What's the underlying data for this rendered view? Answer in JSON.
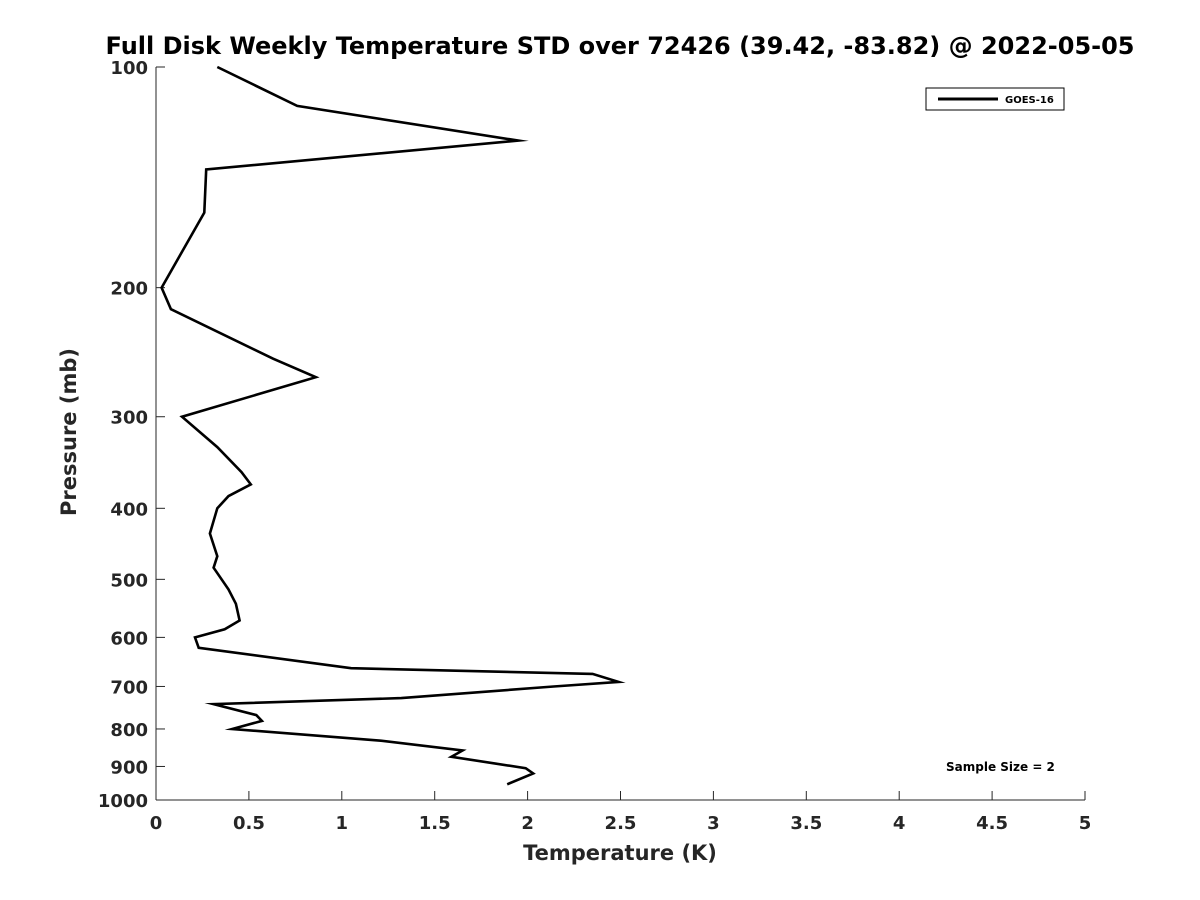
{
  "chart_data": {
    "type": "line",
    "title": "Full Disk Weekly Temperature STD over 72426 (39.42, -83.82) @ 2022-05-05",
    "xlabel": "Temperature (K)",
    "ylabel": "Pressure (mb)",
    "xlim": [
      0,
      5
    ],
    "ylim": [
      100,
      1000
    ],
    "y_scale": "log",
    "y_reversed": true,
    "grid": false,
    "legend_position": "top-right",
    "x_ticks": [
      "0",
      "0.5",
      "1",
      "1.5",
      "2",
      "2.5",
      "3",
      "3.5",
      "4",
      "4.5",
      "5"
    ],
    "y_ticks": [
      "100",
      "200",
      "300",
      "400",
      "500",
      "600",
      "700",
      "800",
      "900",
      "1000"
    ],
    "annotation": "Sample Size = 2",
    "series": [
      {
        "name": "GOES-16",
        "color": "#000000",
        "x": [
          0.33,
          0.76,
          1.95,
          0.27,
          0.26,
          0.03,
          0.08,
          0.63,
          0.86,
          0.54,
          0.14,
          0.33,
          0.46,
          0.51,
          0.39,
          0.33,
          0.29,
          0.33,
          0.31,
          0.39,
          0.43,
          0.45,
          0.37,
          0.21,
          0.23,
          1.05,
          2.35,
          2.49,
          2.14,
          1.32,
          0.31,
          0.54,
          0.57,
          0.41,
          1.21,
          1.65,
          1.59,
          1.99,
          2.03,
          1.89
        ],
        "y": [
          100,
          113,
          126,
          138,
          158,
          200,
          214,
          250,
          265,
          280,
          300,
          330,
          357,
          371,
          385,
          400,
          433,
          465,
          482,
          516,
          540,
          569,
          585,
          600,
          620,
          661,
          673,
          690,
          700,
          726,
          740,
          766,
          780,
          800,
          830,
          856,
          873,
          905,
          920,
          952
        ]
      }
    ]
  }
}
